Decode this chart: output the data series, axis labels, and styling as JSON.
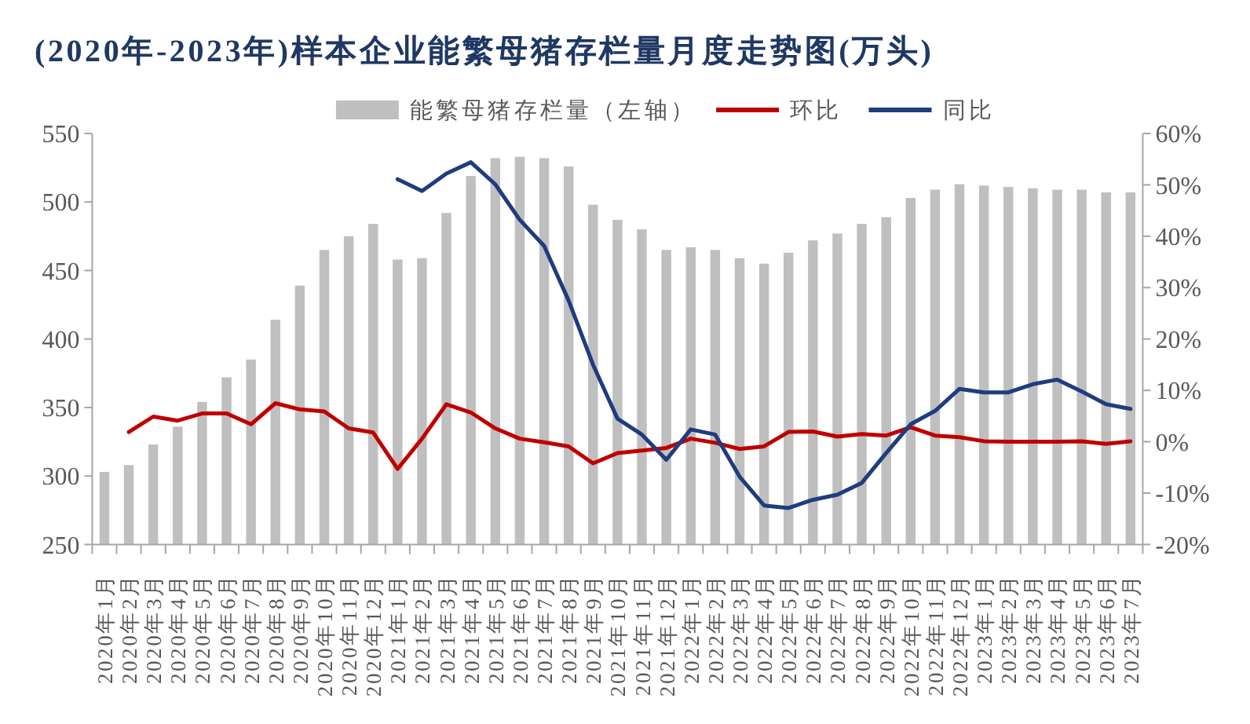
{
  "chart_data": {
    "type": "bar",
    "title": "(2020年-2023年)样本企业能繁母猪存栏量月度走势图(万头)",
    "categories": [
      "2020年1月",
      "2020年2月",
      "2020年3月",
      "2020年4月",
      "2020年5月",
      "2020年6月",
      "2020年7月",
      "2020年8月",
      "2020年9月",
      "2020年10月",
      "2020年11月",
      "2020年12月",
      "2021年1月",
      "2021年2月",
      "2021年3月",
      "2021年4月",
      "2021年5月",
      "2021年6月",
      "2021年7月",
      "2021年8月",
      "2021年9月",
      "2021年10月",
      "2021年11月",
      "2021年12月",
      "2022年1月",
      "2022年2月",
      "2022年3月",
      "2022年4月",
      "2022年5月",
      "2022年6月",
      "2022年7月",
      "2022年8月",
      "2022年9月",
      "2022年10月",
      "2022年11月",
      "2022年12月",
      "2023年1月",
      "2023年2月",
      "2023年3月",
      "2023年4月",
      "2023年5月",
      "2023年6月",
      "2023年7月"
    ],
    "series": [
      {
        "name": "能繁母猪存栏量（左轴）",
        "color": "#bfbfbf",
        "values": [
          303,
          308,
          323,
          336,
          354,
          372,
          385,
          414,
          439,
          465,
          475,
          484,
          458,
          459,
          492,
          519,
          532,
          533,
          532,
          526,
          498,
          487,
          480,
          465,
          467,
          465,
          459,
          455,
          463,
          472,
          477,
          484,
          489,
          503,
          509,
          513,
          512,
          511,
          510,
          509,
          509,
          507,
          507
        ]
      },
      {
        "name": "环比",
        "type": "line",
        "axis": "y2",
        "color": "#c00000",
        "values": [
          null,
          1.9,
          4.9,
          4.1,
          5.5,
          5.5,
          3.4,
          7.5,
          6.3,
          5.9,
          2.6,
          1.8,
          -5.3,
          0.6,
          7.3,
          5.7,
          2.6,
          0.6,
          -0.1,
          -0.9,
          -4.2,
          -2.2,
          -1.7,
          -1.2,
          0.6,
          -0.2,
          -1.4,
          -0.9,
          1.9,
          2.0,
          1.0,
          1.5,
          1.2,
          2.8,
          1.2,
          0.9,
          0.1,
          0,
          0,
          0,
          0.1,
          -0.4,
          0.1
        ]
      },
      {
        "name": "同比",
        "type": "line",
        "axis": "y2",
        "color": "#1f3c7e",
        "values": [
          null,
          null,
          null,
          null,
          null,
          null,
          null,
          null,
          null,
          null,
          null,
          null,
          51.1,
          48.8,
          52.2,
          54.4,
          50.1,
          43.2,
          38.1,
          27.5,
          15,
          4.5,
          1.4,
          -3.5,
          2.4,
          1.4,
          -6.8,
          -12.4,
          -12.9,
          -11.3,
          -10.3,
          -8.0,
          -2.2,
          3.4,
          6.0,
          10.3,
          9.6,
          9.6,
          11.2,
          12.1,
          9.8,
          7.3,
          6.4
        ]
      }
    ],
    "ylim": [
      250,
      550
    ],
    "yticks": [
      250,
      300,
      350,
      400,
      450,
      500,
      550
    ],
    "y2lim": [
      -20,
      60
    ],
    "y2ticks": [
      {
        "value": -20,
        "label": "-20%"
      },
      {
        "value": -10,
        "label": "-10%"
      },
      {
        "value": 0,
        "label": "0%"
      },
      {
        "value": 10,
        "label": "10%"
      },
      {
        "value": 20,
        "label": "20%"
      },
      {
        "value": 30,
        "label": "30%"
      },
      {
        "value": 40,
        "label": "40%"
      },
      {
        "value": 50,
        "label": "50%"
      },
      {
        "value": 60,
        "label": "60%"
      }
    ],
    "legend": "top",
    "line_style": "solid"
  }
}
